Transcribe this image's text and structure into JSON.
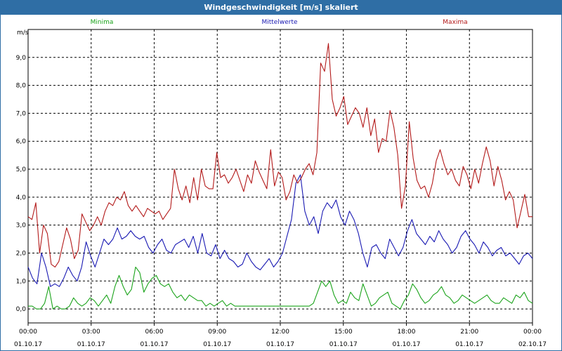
{
  "window": {
    "title": "Windgeschwindigkeit [m/s] skaliert"
  },
  "chart_data": {
    "type": "line",
    "title": "Windgeschwindigkeit [m/s] skaliert",
    "ylabel": "m/s",
    "ylim": [
      -0.5,
      10.0
    ],
    "yticks": [
      "0,0",
      "1,0",
      "2,0",
      "3,0",
      "4,0",
      "5,0",
      "6,0",
      "7,0",
      "8,0",
      "9,0"
    ],
    "ytick_values": [
      0,
      1,
      2,
      3,
      4,
      5,
      6,
      7,
      8,
      9
    ],
    "xlim_hours": [
      0,
      24
    ],
    "xticks": [
      {
        "time": "00:00",
        "date": "01.10.17"
      },
      {
        "time": "03:00",
        "date": "01.10.17"
      },
      {
        "time": "06:00",
        "date": "01.10.17"
      },
      {
        "time": "09:00",
        "date": "01.10.17"
      },
      {
        "time": "12:00",
        "date": "01.10.17"
      },
      {
        "time": "15:00",
        "date": "01.10.17"
      },
      {
        "time": "18:00",
        "date": "01.10.17"
      },
      {
        "time": "21:00",
        "date": "01.10.17"
      },
      {
        "time": "00:00",
        "date": "02.10.17"
      }
    ],
    "grid": true,
    "legend_placement": "top",
    "series": [
      {
        "name": "Minima",
        "color": "#1aa31a",
        "values": [
          0.1,
          0.1,
          0.0,
          0.0,
          0.2,
          0.8,
          0.0,
          0.1,
          0.0,
          0.0,
          0.1,
          0.4,
          0.2,
          0.1,
          0.2,
          0.4,
          0.3,
          0.1,
          0.3,
          0.5,
          0.2,
          0.8,
          1.2,
          0.8,
          0.5,
          0.7,
          1.5,
          1.3,
          0.6,
          0.9,
          1.1,
          1.2,
          0.9,
          0.8,
          0.9,
          0.6,
          0.4,
          0.5,
          0.3,
          0.5,
          0.4,
          0.3,
          0.3,
          0.1,
          0.2,
          0.1,
          0.2,
          0.3,
          0.1,
          0.2,
          0.1,
          0.1,
          0.1,
          0.1,
          0.1,
          0.1,
          0.1,
          0.1,
          0.1,
          0.1,
          0.1,
          0.1,
          0.1,
          0.1,
          0.1,
          0.1,
          0.1,
          0.1,
          0.1,
          0.2,
          0.6,
          1.0,
          0.8,
          1.0,
          0.5,
          0.2,
          0.3,
          0.2,
          0.6,
          0.4,
          0.3,
          0.9,
          0.5,
          0.1,
          0.2,
          0.4,
          0.5,
          0.6,
          0.2,
          0.1,
          0.0,
          0.3,
          0.5,
          0.9,
          0.7,
          0.4,
          0.2,
          0.3,
          0.5,
          0.6,
          0.8,
          0.5,
          0.4,
          0.2,
          0.3,
          0.5,
          0.4,
          0.3,
          0.2,
          0.3,
          0.4,
          0.5,
          0.3,
          0.2,
          0.2,
          0.4,
          0.3,
          0.2,
          0.5,
          0.4,
          0.6,
          0.3,
          0.2
        ]
      },
      {
        "name": "Mittelwerte",
        "color": "#1a1ab3",
        "values": [
          1.5,
          1.1,
          0.9,
          2.0,
          1.5,
          0.8,
          0.9,
          0.8,
          1.1,
          1.5,
          1.2,
          1.0,
          1.5,
          2.4,
          1.9,
          1.5,
          2.0,
          2.5,
          2.3,
          2.5,
          2.9,
          2.5,
          2.6,
          2.8,
          2.6,
          2.5,
          2.6,
          2.2,
          2.0,
          2.3,
          2.5,
          2.1,
          2.0,
          2.3,
          2.4,
          2.5,
          2.2,
          2.6,
          2.0,
          2.7,
          2.0,
          1.9,
          2.3,
          1.8,
          2.1,
          1.8,
          1.7,
          1.5,
          1.6,
          2.0,
          1.7,
          1.5,
          1.4,
          1.6,
          1.8,
          1.5,
          1.7,
          2.0,
          2.6,
          3.2,
          4.5,
          4.8,
          3.5,
          3.0,
          3.3,
          2.7,
          3.5,
          3.8,
          3.6,
          3.9,
          3.3,
          3.0,
          3.5,
          3.2,
          2.7,
          2.0,
          1.5,
          2.2,
          2.3,
          2.0,
          1.8,
          2.5,
          2.2,
          1.9,
          2.2,
          2.8,
          3.2,
          2.7,
          2.5,
          2.3,
          2.6,
          2.4,
          2.8,
          2.5,
          2.3,
          2.0,
          2.2,
          2.6,
          2.8,
          2.5,
          2.3,
          2.0,
          2.4,
          2.2,
          1.9,
          2.1,
          2.2,
          1.9,
          2.0,
          1.8,
          1.6,
          1.9,
          2.0,
          1.8
        ]
      },
      {
        "name": "Maxima",
        "color": "#b31a1a",
        "values": [
          3.3,
          3.2,
          3.8,
          2.0,
          3.0,
          2.7,
          1.6,
          1.5,
          1.7,
          2.3,
          2.9,
          2.5,
          1.8,
          2.1,
          3.4,
          3.1,
          2.8,
          3.0,
          3.3,
          3.0,
          3.5,
          3.8,
          3.7,
          4.0,
          3.9,
          4.2,
          3.7,
          3.5,
          3.7,
          3.5,
          3.3,
          3.6,
          3.5,
          3.4,
          3.5,
          3.2,
          3.4,
          3.6,
          5.0,
          4.3,
          3.9,
          4.4,
          3.8,
          4.7,
          3.9,
          5.0,
          4.4,
          4.3,
          4.3,
          5.6,
          4.7,
          4.8,
          4.5,
          4.7,
          5.0,
          4.6,
          4.2,
          4.8,
          4.5,
          5.3,
          4.9,
          4.6,
          4.3,
          5.7,
          4.4,
          4.9,
          4.7,
          3.9,
          4.2,
          4.8,
          4.5,
          4.7,
          5.0,
          5.2,
          4.8,
          5.6,
          8.8,
          8.5,
          9.5,
          7.5,
          6.9,
          7.2,
          7.6,
          6.6,
          6.9,
          7.2,
          7.0,
          6.5,
          7.2,
          6.2,
          6.8,
          5.6,
          6.1,
          6.0,
          7.1,
          6.5,
          5.5,
          3.6,
          4.4,
          6.7,
          5.4,
          4.6,
          4.3,
          4.4,
          4.0,
          4.5,
          5.3,
          5.7,
          5.2,
          4.8,
          5.0,
          4.6,
          4.4,
          5.1,
          4.8,
          4.3,
          5.0,
          4.5,
          5.2,
          5.8,
          5.3,
          4.4,
          5.1,
          4.6,
          3.9,
          4.2,
          3.9,
          2.9,
          3.5,
          4.1,
          3.3,
          3.3
        ]
      }
    ]
  }
}
